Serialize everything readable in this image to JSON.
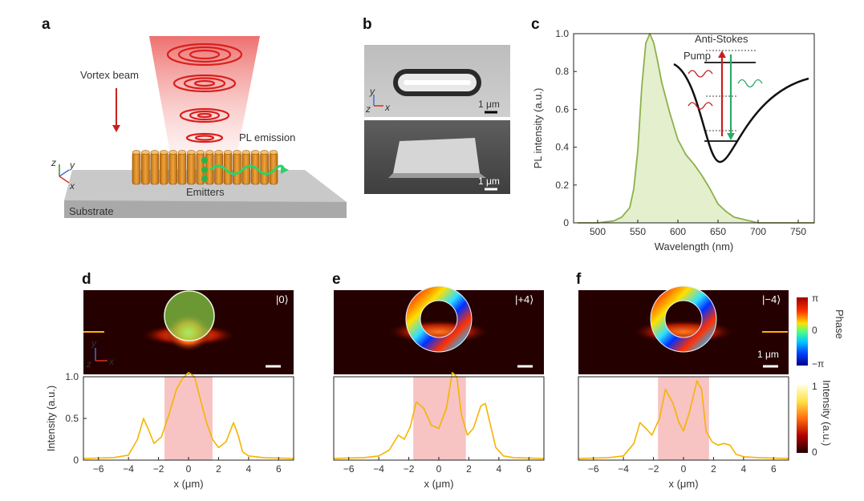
{
  "panels": {
    "a": {
      "label": "a",
      "vortex_beam": "Vortex beam",
      "pl_emission": "PL emission",
      "emitters": "Emitters",
      "substrate": "Substrate",
      "axes": {
        "z": "z",
        "y": "y",
        "x": "x"
      }
    },
    "b": {
      "label": "b",
      "scale_top": "1 μm",
      "scale_bottom": "1 μm",
      "axes": {
        "z": "z",
        "y": "y",
        "x": "x"
      }
    },
    "c": {
      "label": "c",
      "anti_stokes": "Anti-Stokes",
      "pump": "Pump",
      "colors": {
        "anti_stokes": "#2daa6a",
        "pump": "#c8201e",
        "curve": "#8db04a",
        "fill": "#e3efcd"
      }
    },
    "d": {
      "label": "d",
      "state": "|0⟩",
      "scale": "",
      "axes": {
        "z": "z",
        "y": "y",
        "x": "x"
      }
    },
    "e": {
      "label": "e",
      "state": "|+4⟩",
      "scale": ""
    },
    "f": {
      "label": "f",
      "state": "|−4⟩",
      "scale": "1 μm"
    }
  },
  "colorbars": {
    "phase": {
      "label": "Phase",
      "top": "π",
      "mid": "0",
      "bottom": "−π"
    },
    "intensity": {
      "label": "Intensity (a.u.)",
      "top": "1",
      "bottom": "0"
    }
  },
  "chart_data": [
    {
      "type": "area",
      "id": "pl-spectrum",
      "title": "",
      "xlabel": "Wavelength (nm)",
      "ylabel": "PL intensity (a.u.)",
      "xlim": [
        470,
        770
      ],
      "ylim": [
        0,
        1.0
      ],
      "xticks": [
        500,
        550,
        600,
        650,
        700,
        750
      ],
      "yticks": [
        0,
        0.2,
        0.4,
        0.6,
        0.8,
        1.0
      ],
      "ytick_labels": [
        "0",
        "0.2",
        "0.4",
        "0.6",
        "0.8",
        "1.0"
      ],
      "x": [
        475,
        500,
        520,
        530,
        540,
        545,
        550,
        555,
        560,
        565,
        570,
        575,
        580,
        590,
        600,
        610,
        620,
        630,
        640,
        650,
        660,
        670,
        680,
        690,
        700,
        720,
        740,
        770
      ],
      "y": [
        0.0,
        0.0,
        0.01,
        0.03,
        0.08,
        0.18,
        0.38,
        0.72,
        0.95,
        1.0,
        0.95,
        0.85,
        0.74,
        0.58,
        0.44,
        0.36,
        0.31,
        0.25,
        0.18,
        0.1,
        0.06,
        0.03,
        0.02,
        0.01,
        0.0,
        0.0,
        0.0,
        0.0
      ]
    },
    {
      "type": "line",
      "id": "profile-d",
      "xlabel": "x (μm)",
      "ylabel": "Intensity (a.u.)",
      "xlim": [
        -7,
        7
      ],
      "ylim": [
        0,
        1.0
      ],
      "xticks": [
        -6,
        -4,
        -2,
        0,
        2,
        4,
        6
      ],
      "yticks": [
        0,
        0.5,
        1.0
      ],
      "ytick_labels": [
        "0",
        "0.5",
        "1.0"
      ],
      "shaded_region": [
        -1.6,
        1.6
      ],
      "x": [
        -7,
        -5,
        -4,
        -3.4,
        -3.0,
        -2.7,
        -2.3,
        -1.8,
        -1.3,
        -0.8,
        -0.4,
        0,
        0.4,
        0.8,
        1.2,
        1.6,
        2.0,
        2.5,
        3.0,
        3.3,
        3.6,
        4,
        5,
        7
      ],
      "y": [
        0.02,
        0.03,
        0.06,
        0.25,
        0.5,
        0.38,
        0.2,
        0.28,
        0.55,
        0.85,
        0.98,
        1.05,
        1.0,
        0.72,
        0.45,
        0.25,
        0.15,
        0.22,
        0.45,
        0.3,
        0.1,
        0.05,
        0.03,
        0.02
      ]
    },
    {
      "type": "line",
      "id": "profile-e",
      "xlabel": "x (μm)",
      "ylabel": "",
      "xlim": [
        -7,
        7
      ],
      "ylim": [
        0,
        1.0
      ],
      "xticks": [
        -6,
        -4,
        -2,
        0,
        2,
        4,
        6
      ],
      "shaded_region": [
        -1.7,
        1.8
      ],
      "x": [
        -7,
        -5,
        -4,
        -3.3,
        -2.7,
        -2.3,
        -1.9,
        -1.5,
        -1.0,
        -0.5,
        0,
        0.5,
        0.9,
        1.2,
        1.5,
        1.9,
        2.3,
        2.8,
        3.1,
        3.4,
        3.8,
        4.3,
        5,
        7
      ],
      "y": [
        0.02,
        0.03,
        0.05,
        0.12,
        0.3,
        0.25,
        0.4,
        0.7,
        0.62,
        0.42,
        0.38,
        0.62,
        1.05,
        1.0,
        0.55,
        0.3,
        0.38,
        0.65,
        0.68,
        0.45,
        0.15,
        0.05,
        0.03,
        0.02
      ]
    },
    {
      "type": "line",
      "id": "profile-f",
      "xlabel": "x (μm)",
      "ylabel": "",
      "xlim": [
        -7,
        7
      ],
      "ylim": [
        0,
        1.0
      ],
      "xticks": [
        -6,
        -4,
        -2,
        0,
        2,
        4,
        6
      ],
      "shaded_region": [
        -1.7,
        1.7
      ],
      "x": [
        -7,
        -5,
        -4,
        -3.3,
        -2.9,
        -2.5,
        -2.1,
        -1.6,
        -1.2,
        -0.7,
        -0.3,
        0,
        0.4,
        0.9,
        1.2,
        1.5,
        1.9,
        2.3,
        2.7,
        3.1,
        3.5,
        4,
        5,
        7
      ],
      "y": [
        0.02,
        0.03,
        0.05,
        0.2,
        0.45,
        0.38,
        0.3,
        0.5,
        0.85,
        0.68,
        0.45,
        0.35,
        0.58,
        0.95,
        0.85,
        0.35,
        0.22,
        0.18,
        0.2,
        0.18,
        0.07,
        0.04,
        0.03,
        0.02
      ]
    }
  ]
}
